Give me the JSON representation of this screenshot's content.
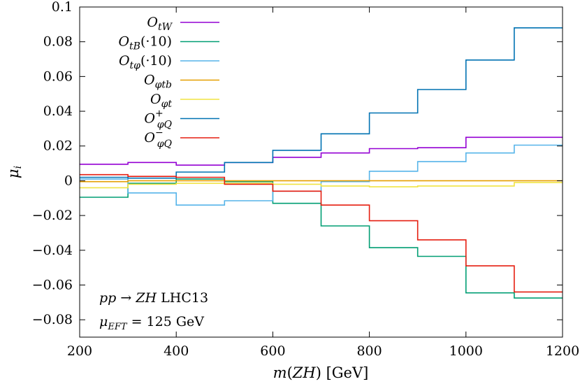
{
  "chart_data": {
    "type": "line",
    "xlabel": "m(ZH) [GeV]",
    "ylabel": "μ_i",
    "xlim": [
      200,
      1200
    ],
    "ylim": [
      -0.09,
      0.1
    ],
    "x_ticks": [
      200,
      400,
      600,
      800,
      1000,
      1200
    ],
    "x_tick_labels": [
      "200",
      "400",
      "600",
      "800",
      "1000",
      "1200"
    ],
    "y_ticks": [
      0.1,
      0.08,
      0.06,
      0.04,
      0.02,
      0,
      -0.02,
      -0.04,
      -0.06,
      -0.08
    ],
    "y_tick_labels": [
      "0.1",
      "0.08",
      "0.06",
      "0.04",
      "0.02",
      "0",
      "−0.02",
      "−0.04",
      "−0.06",
      "−0.08"
    ],
    "bin_edges": [
      200,
      300,
      400,
      500,
      600,
      700,
      800,
      900,
      1000,
      1100,
      1200
    ],
    "grid": false,
    "legend_position": "top-left",
    "series": [
      {
        "name": "O_tW",
        "base": "O",
        "sub": "tW",
        "sup": "",
        "suffix": "",
        "color": "#9400d3",
        "values": [
          0.0095,
          0.0105,
          0.009,
          0.0105,
          0.0135,
          0.016,
          0.0185,
          0.019,
          0.025,
          0.025
        ]
      },
      {
        "name": "O_tB(·10)",
        "base": "O",
        "sub": "tB",
        "sup": "",
        "suffix": "(·10)",
        "color": "#009e73",
        "values": [
          -0.0095,
          -0.0015,
          0.001,
          -0.0005,
          -0.013,
          -0.026,
          -0.0385,
          -0.0435,
          -0.0645,
          -0.0675
        ]
      },
      {
        "name": "O_tφ(·10)",
        "base": "O",
        "sub": "tφ",
        "sup": "",
        "suffix": "(·10)",
        "color": "#56b4e9",
        "values": [
          0.001,
          -0.007,
          -0.014,
          -0.0115,
          -0.006,
          -0.0005,
          0.0055,
          0.011,
          0.016,
          0.0205
        ]
      },
      {
        "name": "O_φtb",
        "base": "O",
        "sub": "φtb",
        "sup": "",
        "suffix": "",
        "color": "#e69f00",
        "values": [
          -0.0005,
          0.0,
          0.0,
          0.0,
          0.0,
          0.0,
          0.0,
          0.0,
          0.0,
          0.0
        ]
      },
      {
        "name": "O_φt",
        "base": "O",
        "sub": "φt",
        "sup": "",
        "suffix": "",
        "color": "#f0e442",
        "values": [
          -0.004,
          -0.002,
          -0.0015,
          -0.0015,
          -0.002,
          -0.003,
          -0.0035,
          -0.003,
          -0.003,
          -0.001
        ]
      },
      {
        "name": "O+_φQ",
        "base": "O",
        "sub": "φQ",
        "sup": "+",
        "suffix": "",
        "color": "#0072b2",
        "values": [
          0.002,
          0.0015,
          0.005,
          0.0105,
          0.0175,
          0.027,
          0.039,
          0.0525,
          0.0695,
          0.088
        ]
      },
      {
        "name": "O−_φQ",
        "base": "O",
        "sub": "φQ",
        "sup": "−",
        "suffix": "",
        "color": "#e51e10",
        "values": [
          0.0035,
          0.0025,
          0.002,
          -0.002,
          -0.006,
          -0.014,
          -0.023,
          -0.034,
          -0.049,
          -0.064
        ]
      }
    ],
    "annotations": [
      "pp → ZH LHC13",
      "μ_EFT = 125 GeV"
    ]
  }
}
